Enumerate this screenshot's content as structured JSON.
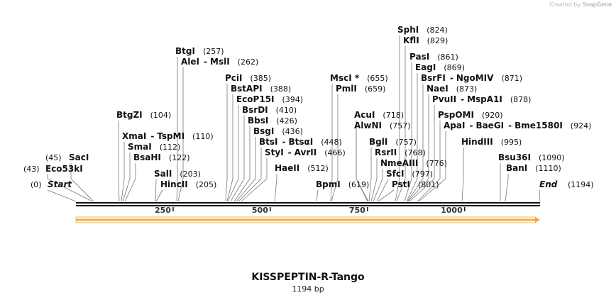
{
  "credit": {
    "prefix": "Created by",
    "brand": "SnapGene"
  },
  "map": {
    "title": "KISSPEPTIN-R-Tango",
    "length_label": "1194 bp",
    "length": 1194,
    "feature_color": "#f5a623",
    "ticks": [
      "250",
      "500",
      "750",
      "1000"
    ],
    "sites": [
      {
        "name": "Start",
        "pos": "(0)",
        "italic": true
      },
      {
        "name": "Eco53kI",
        "pos": "(43)"
      },
      {
        "name": "SacI",
        "pos": "(45)"
      },
      {
        "name": "BtgZI",
        "pos": "(104)"
      },
      {
        "name": "XmaI",
        "name2": "TspMI",
        "pos": "(110)"
      },
      {
        "name": "SmaI",
        "pos": "(112)"
      },
      {
        "name": "BsaHI",
        "pos": "(122)"
      },
      {
        "name": "SalI",
        "pos": "(203)"
      },
      {
        "name": "HincII",
        "pos": "(205)"
      },
      {
        "name": "BtgI",
        "pos": "(257)"
      },
      {
        "name": "AleI",
        "name2": "MslI",
        "pos": "(262)"
      },
      {
        "name": "PciI",
        "pos": "(385)"
      },
      {
        "name": "BstAPI",
        "pos": "(388)"
      },
      {
        "name": "EcoP15I",
        "pos": "(394)"
      },
      {
        "name": "BsrDI",
        "pos": "(410)"
      },
      {
        "name": "BbsI",
        "pos": "(426)"
      },
      {
        "name": "BsgI",
        "pos": "(436)"
      },
      {
        "name": "BtsI",
        "name2": "BtsαI",
        "pos": "(448)"
      },
      {
        "name": "StyI",
        "name2": "AvrII",
        "pos": "(466)"
      },
      {
        "name": "HaeII",
        "pos": "(512)"
      },
      {
        "name": "MscI *",
        "pos": "(655)"
      },
      {
        "name": "PmlI",
        "pos": "(659)"
      },
      {
        "name": "BpmI",
        "pos": "(619)"
      },
      {
        "name": "AcuI",
        "pos": "(718)"
      },
      {
        "name": "AlwNI",
        "pos": "(757)"
      },
      {
        "name": "BglI",
        "pos": "(757)"
      },
      {
        "name": "RsrII",
        "pos": "(768)"
      },
      {
        "name": "NmeAIII",
        "pos": "(776)"
      },
      {
        "name": "SfcI",
        "pos": "(797)"
      },
      {
        "name": "PstI",
        "pos": "(801)"
      },
      {
        "name": "SphI",
        "pos": "(824)"
      },
      {
        "name": "KflI",
        "pos": "(829)"
      },
      {
        "name": "PasI",
        "pos": "(861)"
      },
      {
        "name": "EagI",
        "pos": "(869)"
      },
      {
        "name": "BsrFI",
        "name2": "NgoMIV",
        "pos": "(871)"
      },
      {
        "name": "NaeI",
        "pos": "(873)"
      },
      {
        "name": "PvuII",
        "name2": "MspA1I",
        "pos": "(878)"
      },
      {
        "name": "PspOMI",
        "pos": "(920)"
      },
      {
        "name": "ApaI",
        "name2": "BaeGI",
        "name3": "Bme1580I",
        "pos": "(924)"
      },
      {
        "name": "HindIII",
        "pos": "(995)"
      },
      {
        "name": "Bsu36I",
        "pos": "(1090)"
      },
      {
        "name": "BanI",
        "pos": "(1110)"
      },
      {
        "name": "End",
        "pos": "(1194)",
        "italic": true
      }
    ]
  }
}
